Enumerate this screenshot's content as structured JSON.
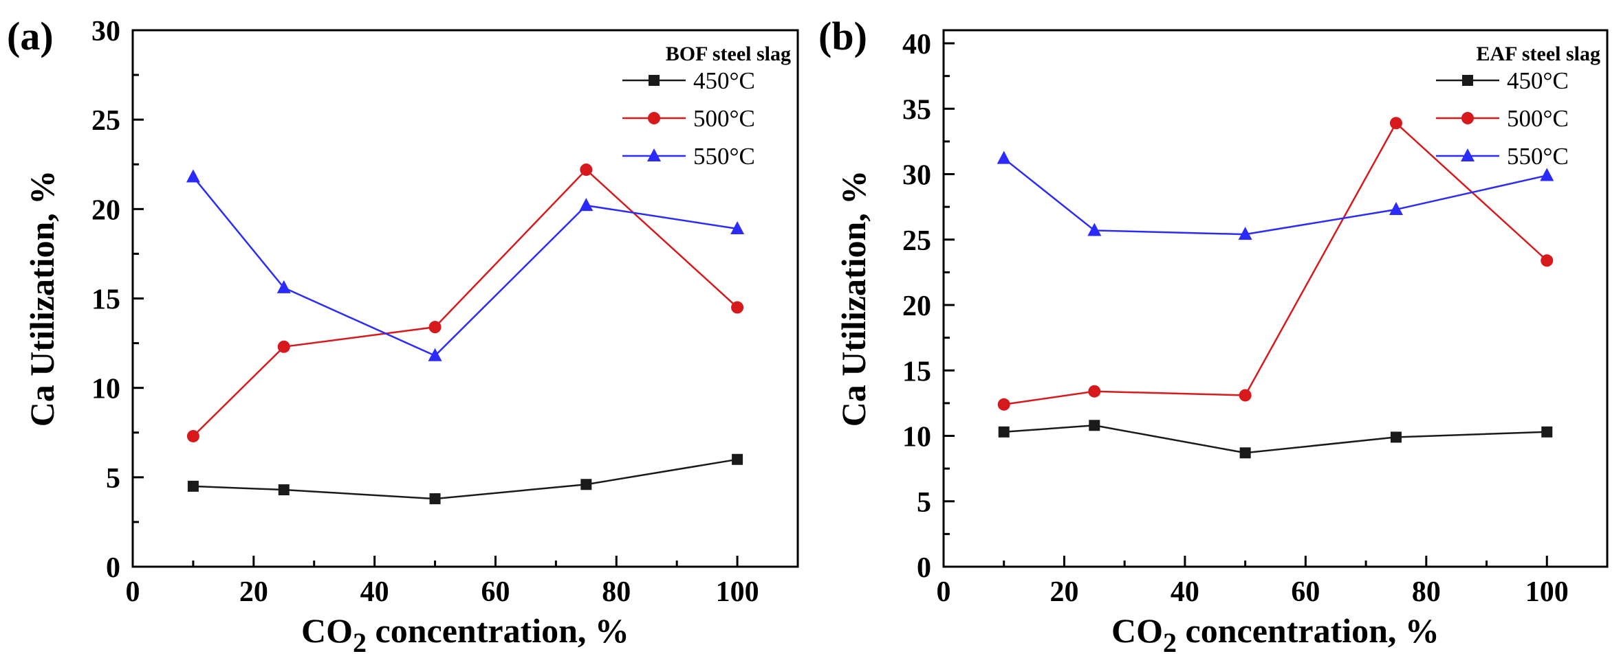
{
  "chart_data": [
    {
      "type": "line",
      "panel_label": "(a)",
      "legend_title": "BOF steel slag",
      "xlabel": "CO",
      "xlabel_subscript": "2",
      "xlabel_suffix": " concentration, %",
      "ylabel": "Ca Utilization, %",
      "xlim": [
        0,
        110
      ],
      "ylim": [
        0,
        30
      ],
      "xticks": [
        0,
        20,
        40,
        60,
        80,
        100
      ],
      "xtick_labels": [
        "0",
        "20",
        "40",
        "60",
        "80",
        "100"
      ],
      "yticks": [
        0,
        5,
        10,
        15,
        20,
        25,
        30
      ],
      "ytick_labels": [
        "0",
        "5",
        "10",
        "15",
        "20",
        "25",
        "30"
      ],
      "x": [
        10,
        25,
        50,
        75,
        100
      ],
      "series": [
        {
          "name": "450°C",
          "marker": "square",
          "color": "#1a1a1a",
          "values": [
            4.5,
            4.3,
            3.8,
            4.6,
            6.0
          ]
        },
        {
          "name": "500°C",
          "marker": "circle",
          "color": "#d7191c",
          "values": [
            7.3,
            12.3,
            13.4,
            22.2,
            14.5
          ]
        },
        {
          "name": "550°C",
          "marker": "triangle",
          "color": "#2b2bff",
          "values": [
            21.8,
            15.6,
            11.8,
            20.2,
            18.9
          ]
        }
      ]
    },
    {
      "type": "line",
      "panel_label": "(b)",
      "legend_title": "EAF steel slag",
      "xlabel": "CO",
      "xlabel_subscript": "2",
      "xlabel_suffix": " concentration, %",
      "ylabel": "Ca Utilization, %",
      "xlim": [
        0,
        110
      ],
      "ylim": [
        0,
        41
      ],
      "xticks": [
        0,
        20,
        40,
        60,
        80,
        100
      ],
      "xtick_labels": [
        "0",
        "20",
        "40",
        "60",
        "80",
        "100"
      ],
      "yticks": [
        0,
        5,
        10,
        15,
        20,
        25,
        30,
        35,
        40
      ],
      "ytick_labels": [
        "0",
        "5",
        "10",
        "15",
        "20",
        "25",
        "30",
        "35",
        "40"
      ],
      "x": [
        10,
        25,
        50,
        75,
        100
      ],
      "series": [
        {
          "name": "450°C",
          "marker": "square",
          "color": "#1a1a1a",
          "values": [
            10.3,
            10.8,
            8.7,
            9.9,
            10.3
          ]
        },
        {
          "name": "500°C",
          "marker": "circle",
          "color": "#d7191c",
          "values": [
            12.4,
            13.4,
            13.1,
            33.9,
            23.4
          ]
        },
        {
          "name": "550°C",
          "marker": "triangle",
          "color": "#2b2bff",
          "values": [
            31.2,
            25.7,
            25.4,
            27.3,
            29.9
          ]
        }
      ]
    }
  ]
}
